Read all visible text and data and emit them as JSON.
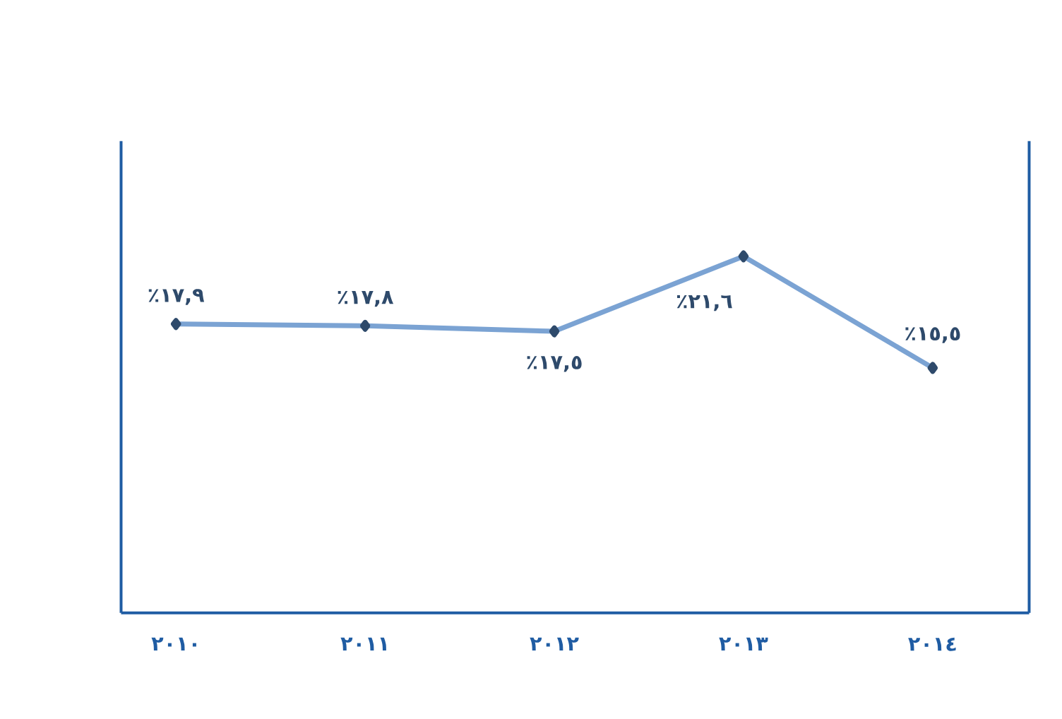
{
  "chart_data": {
    "type": "line",
    "categories": [
      "٢٠١٠",
      "٢٠١١",
      "٢٠١٢",
      "٢٠١٣",
      "٢٠١٤"
    ],
    "series": [
      {
        "color": "#7ba3d3",
        "values": [
          17.9,
          17.8,
          17.5,
          21.6,
          15.5
        ],
        "value_labels": [
          "٪١٧,٩",
          "٪١٧,٨",
          "٪١٧,٥",
          "٪٢١,٦",
          "٪١٥,٥"
        ]
      }
    ],
    "ylim": [
      2.1,
      27.9
    ],
    "tick_labels": "x",
    "marker": "diamond",
    "line_style": "solid"
  }
}
